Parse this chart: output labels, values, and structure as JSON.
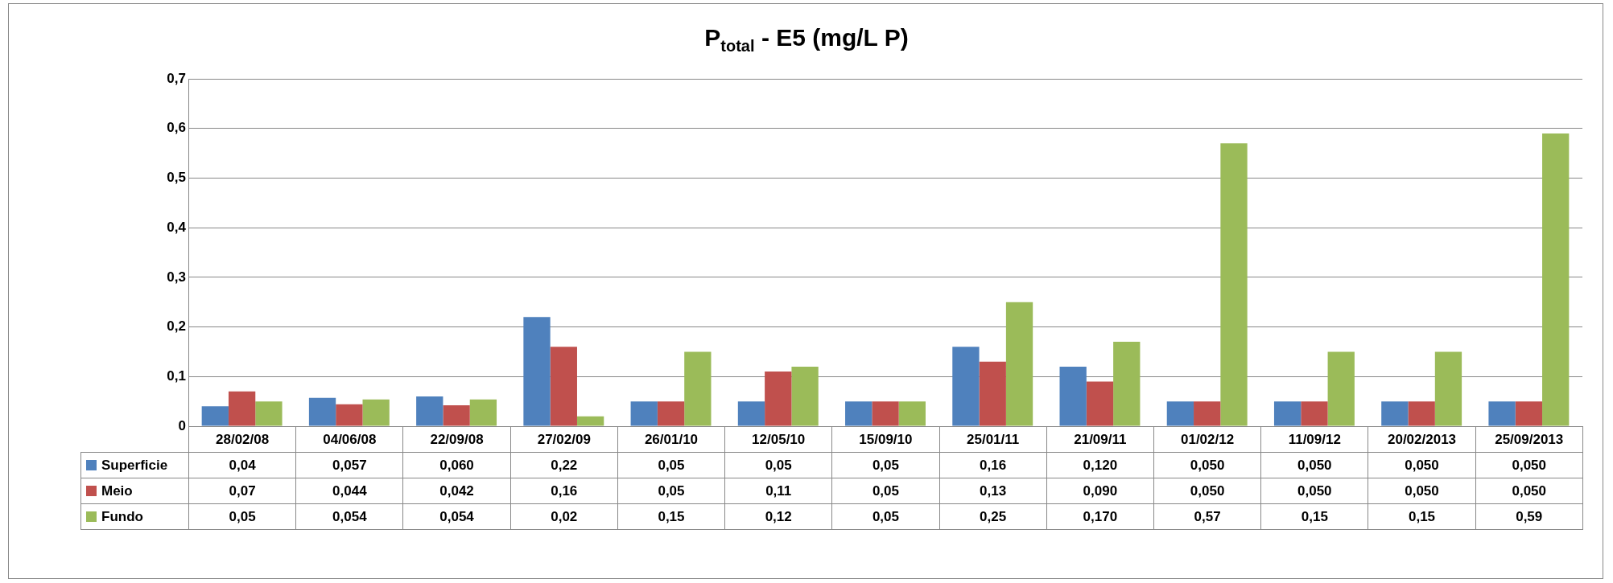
{
  "chart_data": {
    "type": "bar",
    "title": "P$_{total}$ - E5 (mg/L P)",
    "categories": [
      "28/02/08",
      "04/06/08",
      "22/09/08",
      "27/02/09",
      "26/01/10",
      "12/05/10",
      "15/09/10",
      "25/01/11",
      "21/09/11",
      "01/02/12",
      "11/09/12",
      "20/02/2013",
      "25/09/2013"
    ],
    "series": [
      {
        "name": "Superficie",
        "color": "#4f81bd",
        "values": [
          0.04,
          0.057,
          0.06,
          0.22,
          0.05,
          0.05,
          0.05,
          0.16,
          0.12,
          0.05,
          0.05,
          0.05,
          0.05
        ],
        "value_labels": [
          "0,04",
          "0,057",
          "0,060",
          "0,22",
          "0,05",
          "0,05",
          "0,05",
          "0,16",
          "0,120",
          "0,050",
          "0,050",
          "0,050",
          "0,050"
        ]
      },
      {
        "name": "Meio",
        "color": "#c0504d",
        "values": [
          0.07,
          0.044,
          0.042,
          0.16,
          0.05,
          0.11,
          0.05,
          0.13,
          0.09,
          0.05,
          0.05,
          0.05,
          0.05
        ],
        "value_labels": [
          "0,07",
          "0,044",
          "0,042",
          "0,16",
          "0,05",
          "0,11",
          "0,05",
          "0,13",
          "0,090",
          "0,050",
          "0,050",
          "0,050",
          "0,050"
        ]
      },
      {
        "name": "Fundo",
        "color": "#9bbb59",
        "values": [
          0.05,
          0.054,
          0.054,
          0.02,
          0.15,
          0.12,
          0.05,
          0.25,
          0.17,
          0.57,
          0.15,
          0.15,
          0.59
        ],
        "value_labels": [
          "0,05",
          "0,054",
          "0,054",
          "0,02",
          "0,15",
          "0,12",
          "0,05",
          "0,25",
          "0,170",
          "0,57",
          "0,15",
          "0,15",
          "0,59"
        ]
      }
    ],
    "ylim": [
      0,
      0.7
    ],
    "yticks": [
      0,
      {
        "value": 0.1,
        "label": "0,1"
      },
      {
        "value": 0.2,
        "label": "0,2"
      },
      {
        "value": 0.3,
        "label": "0,3"
      },
      {
        "value": 0.4,
        "label": "0,4"
      },
      {
        "value": 0.5,
        "label": "0,5"
      },
      {
        "value": 0.6,
        "label": "0,6"
      },
      {
        "value": 0.7,
        "label": "0,7"
      }
    ],
    "grid": "y",
    "legend": "bottom"
  }
}
